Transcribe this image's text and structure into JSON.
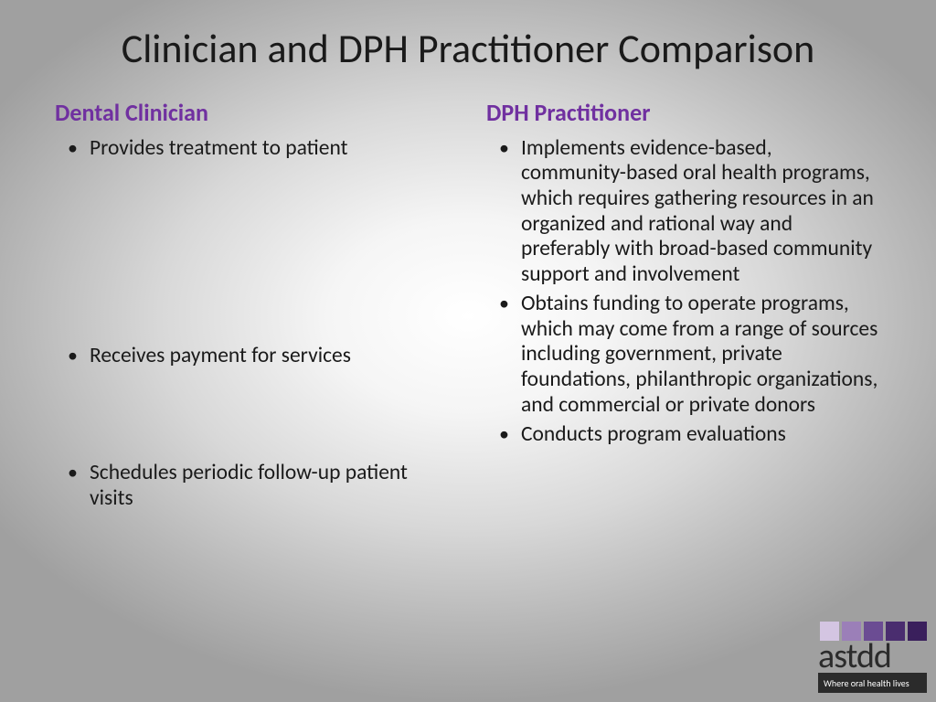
{
  "title": "Clinician and DPH Practitioner Comparison",
  "heading_color": "#7030a0",
  "body_text_color": "#1a1a1a",
  "title_fontsize": 44,
  "heading_fontsize": 26,
  "body_fontsize": 23.5,
  "left": {
    "heading": "Dental Clinician",
    "items": [
      "Provides treatment to patient",
      "Receives payment for services",
      "Schedules periodic follow-up patient visits"
    ]
  },
  "right": {
    "heading": "DPH Practitioner",
    "items": [
      "Implements evidence-based, community-based oral health programs, which requires gathering resources in an organized and rational way and preferably with broad-based community support and involvement",
      "Obtains funding to operate programs, which may come from a range of sources including government, private foundations, philanthropic organizations, and commercial or private donors",
      "Conducts program evaluations"
    ]
  },
  "logo": {
    "square_colors": [
      "#d4c5e2",
      "#9b7fb8",
      "#6b4c93",
      "#4a2d6f",
      "#3a1f5c"
    ],
    "text": "astdd",
    "tagline": "Where oral health lives",
    "text_color": "#2b2b2b",
    "tagline_bg": "#2b2b2b",
    "tagline_color": "#ffffff"
  },
  "background": {
    "type": "radial-gradient",
    "center_color": "#ffffff",
    "edge_color": "#a0a0a0"
  }
}
